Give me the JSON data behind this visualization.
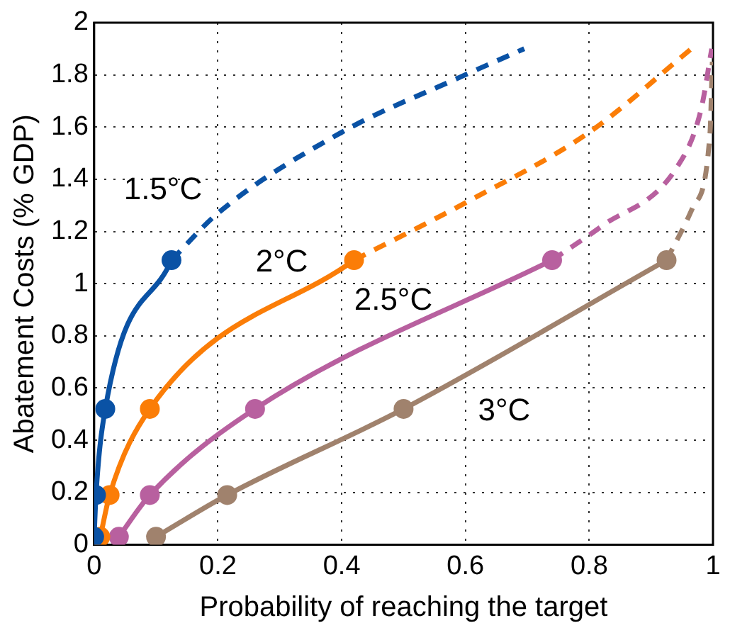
{
  "chart_data": {
    "type": "line",
    "xlabel": "Probability of reaching the target",
    "ylabel": "Abatement Costs (% GDP)",
    "xlim": [
      0,
      1
    ],
    "xticks": [
      0,
      0.2,
      0.4,
      0.6,
      0.8,
      1
    ],
    "ylim": [
      0,
      2
    ],
    "yticks": [
      0,
      0.2,
      0.4,
      0.6,
      0.8,
      1,
      1.2,
      1.4,
      1.6,
      1.8,
      2
    ],
    "grid": true,
    "legend": false,
    "series": [
      {
        "name": "1.5°C",
        "color": "#0a52a5",
        "marker": "circle",
        "line_style": "solid",
        "x": [
          0,
          0.003,
          0.018,
          0.125
        ],
        "values": [
          0.03,
          0.19,
          0.52,
          1.09
        ]
      },
      {
        "color": "#0a52a5",
        "marker": "none",
        "line_style": "dashed",
        "x": [
          0.125,
          0.2,
          0.4,
          0.59,
          0.695
        ],
        "values": [
          1.09,
          1.27,
          1.58,
          1.79,
          1.9
        ]
      },
      {
        "name": "2°C",
        "color": "#fb7d07",
        "marker": "circle",
        "line_style": "solid",
        "x": [
          0.01,
          0.025,
          0.09,
          0.42
        ],
        "values": [
          0.03,
          0.19,
          0.52,
          1.09
        ]
      },
      {
        "color": "#fb7d07",
        "marker": "none",
        "line_style": "dashed",
        "x": [
          0.42,
          0.6,
          0.8,
          0.965
        ],
        "values": [
          1.09,
          1.31,
          1.58,
          1.9
        ]
      },
      {
        "name": "2.5°C",
        "color": "#b8609f",
        "marker": "circle",
        "line_style": "solid",
        "x": [
          0.04,
          0.09,
          0.26,
          0.74
        ],
        "values": [
          0.03,
          0.19,
          0.52,
          1.09
        ]
      },
      {
        "color": "#b8609f",
        "marker": "none",
        "line_style": "dashed",
        "x": [
          0.74,
          0.82,
          0.94,
          0.98,
          0.998
        ],
        "values": [
          1.09,
          1.22,
          1.44,
          1.66,
          1.9
        ]
      },
      {
        "name": "3°C",
        "color": "#a0826d",
        "marker": "circle",
        "line_style": "solid",
        "x": [
          0.1,
          0.215,
          0.5,
          0.925
        ],
        "values": [
          0.03,
          0.19,
          0.52,
          1.09
        ]
      },
      {
        "color": "#a0826d",
        "marker": "none",
        "line_style": "dashed",
        "x": [
          0.925,
          0.967,
          0.995,
          0.999
        ],
        "values": [
          1.09,
          1.29,
          1.57,
          1.85
        ]
      }
    ]
  }
}
